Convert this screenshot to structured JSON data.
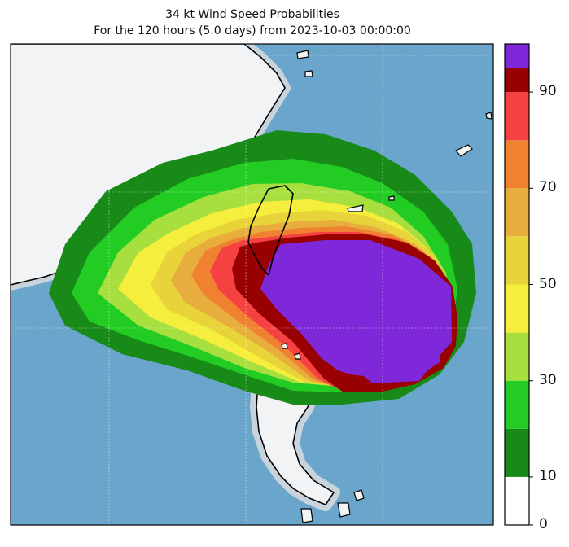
{
  "title": {
    "line1": "34 kt Wind Speed Probabilities",
    "line2": "For the 120 hours (5.0 days) from 2023-10-03 00:00:00"
  },
  "colorbar": {
    "bins": [
      {
        "from": 0,
        "to": 10,
        "color": "#ffffff"
      },
      {
        "from": 10,
        "to": 20,
        "color": "#188a18"
      },
      {
        "from": 20,
        "to": 30,
        "color": "#22cc22"
      },
      {
        "from": 30,
        "to": 40,
        "color": "#a6df3e"
      },
      {
        "from": 40,
        "to": 50,
        "color": "#f6ee3c"
      },
      {
        "from": 50,
        "to": 60,
        "color": "#e8d43a"
      },
      {
        "from": 60,
        "to": 70,
        "color": "#e7ad3d"
      },
      {
        "from": 70,
        "to": 80,
        "color": "#ef8130"
      },
      {
        "from": 80,
        "to": 90,
        "color": "#f54141"
      },
      {
        "from": 90,
        "to": 95,
        "color": "#990000"
      },
      {
        "from": 95,
        "to": 100,
        "color": "#7f28da"
      }
    ],
    "tick_labels": [
      "0",
      "10",
      "30",
      "50",
      "70",
      "90"
    ],
    "tick_values": [
      0,
      10,
      30,
      50,
      70,
      90
    ]
  },
  "colors": {
    "ocean": "#6aa5cb",
    "land": "#f1f3f5",
    "coast": "#000000"
  }
}
